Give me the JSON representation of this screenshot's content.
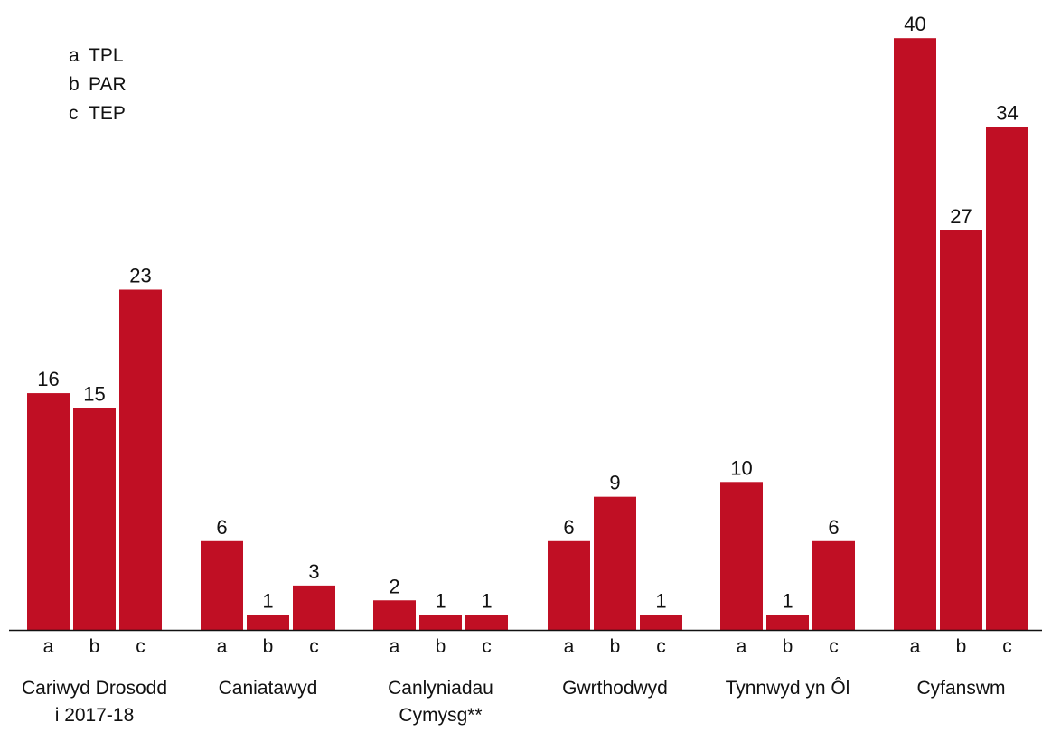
{
  "chart_data": {
    "type": "bar",
    "legend": [
      {
        "key": "a",
        "label": "TPL"
      },
      {
        "key": "b",
        "label": "PAR"
      },
      {
        "key": "c",
        "label": "TEP"
      }
    ],
    "groups": [
      {
        "label": [
          "Cariwyd Drosodd",
          "i 2017-18"
        ],
        "values": [
          16,
          15,
          23
        ]
      },
      {
        "label": [
          "Caniatawyd"
        ],
        "values": [
          6,
          1,
          3
        ]
      },
      {
        "label": [
          "Canlyniadau",
          "Cymysg**"
        ],
        "values": [
          2,
          1,
          1
        ]
      },
      {
        "label": [
          "Gwrthodwyd"
        ],
        "values": [
          6,
          9,
          1
        ]
      },
      {
        "label": [
          "Tynnwyd yn Ôl"
        ],
        "values": [
          10,
          1,
          6
        ]
      },
      {
        "label": [
          "Cyfanswm"
        ],
        "values": [
          40,
          27,
          34
        ]
      }
    ],
    "sub_labels": [
      "a",
      "b",
      "c"
    ],
    "ylim": [
      0,
      40
    ],
    "bar_color": "#c00f24",
    "grid": false
  }
}
